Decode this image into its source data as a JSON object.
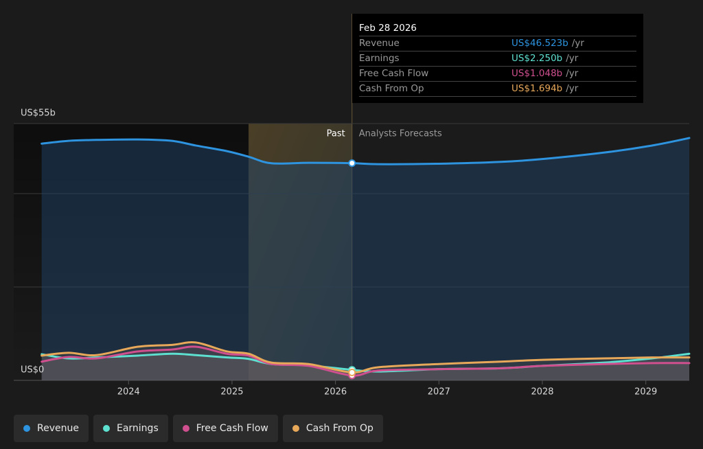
{
  "chart_data": {
    "type": "line",
    "x": [
      2023.16,
      2023.42,
      2023.69,
      2024.09,
      2024.42,
      2024.65,
      2024.95,
      2025.16,
      2025.38,
      2025.74,
      2026.16,
      2026.41,
      2027.0,
      2027.6,
      2028.0,
      2028.6,
      2029.06,
      2029.42
    ],
    "series": [
      {
        "name": "Revenue",
        "color": "#2e94e0",
        "values": [
          50.7,
          51.3,
          51.5,
          51.6,
          51.3,
          50.3,
          49.1,
          47.9,
          46.5,
          46.6,
          46.523,
          46.3,
          46.4,
          46.8,
          47.4,
          48.8,
          50.3,
          51.9
        ]
      },
      {
        "name": "Earnings",
        "color": "#5ee0d0",
        "values": [
          5.6,
          4.7,
          4.9,
          5.3,
          5.7,
          5.4,
          4.9,
          4.6,
          3.5,
          3.2,
          2.25,
          1.9,
          2.4,
          2.6,
          3.1,
          3.8,
          4.7,
          5.7
        ]
      },
      {
        "name": "Free Cash Flow",
        "color": "#d0508f",
        "values": [
          4.0,
          5.0,
          4.7,
          6.2,
          6.6,
          7.2,
          5.7,
          5.3,
          3.5,
          3.1,
          1.048,
          2.1,
          2.4,
          2.6,
          3.1,
          3.5,
          3.7,
          3.7
        ]
      },
      {
        "name": "Cash From Op",
        "color": "#e8a85a",
        "values": [
          5.3,
          5.9,
          5.4,
          7.2,
          7.6,
          8.1,
          6.2,
          5.7,
          3.8,
          3.5,
          1.694,
          2.8,
          3.5,
          4.0,
          4.4,
          4.7,
          4.9,
          4.9
        ]
      }
    ],
    "xlim": [
      2022.89,
      2029.42
    ],
    "xticks": [
      2024,
      2025,
      2026,
      2027,
      2028,
      2029
    ],
    "ylim": [
      0,
      55
    ],
    "yticks": [
      {
        "value": 55,
        "label": "US$55b"
      },
      {
        "value": 0,
        "label": "US$0"
      }
    ],
    "ygrid": [
      0,
      20,
      40,
      55
    ],
    "past_window_start": 2025.16,
    "forecast_start": 2026.16,
    "past_label": "Past",
    "forecast_label": "Analysts Forecasts",
    "tooltip": {
      "date": "Feb 28 2026",
      "index": 10,
      "rows": [
        {
          "label": "Revenue",
          "value": "US$46.523b",
          "unit": "/yr"
        },
        {
          "label": "Earnings",
          "value": "US$2.250b",
          "unit": "/yr"
        },
        {
          "label": "Free Cash Flow",
          "value": "US$1.048b",
          "unit": "/yr"
        },
        {
          "label": "Cash From Op",
          "value": "US$1.694b",
          "unit": "/yr"
        }
      ]
    }
  }
}
